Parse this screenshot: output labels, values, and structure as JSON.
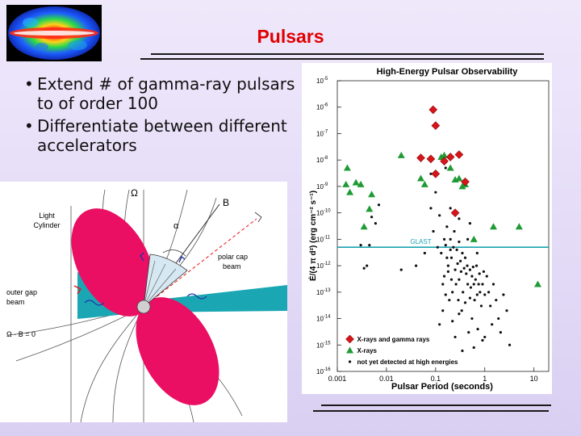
{
  "slide": {
    "title": "Pulsars",
    "bullets": [
      "Extend # of gamma-ray pulsars to of order 100",
      "Differentiate between different accelerators"
    ],
    "bullet_symbol": "•",
    "title_color": "#e00000"
  },
  "diagram": {
    "labels": {
      "omega": "Ω",
      "b_field": "B",
      "alpha": "α",
      "light_cylinder": [
        "Light",
        "Cylinder"
      ],
      "polar_cap_beam": [
        "polar cap",
        "beam"
      ],
      "outer_gap_beam": [
        "outer gap",
        "beam"
      ],
      "omega_dot_b": "Ω · B = 0"
    },
    "colors": {
      "lobe": "#ea0f63",
      "gap": "#1aa7b3"
    }
  },
  "chart_data": {
    "type": "scatter",
    "title": "High-Energy Pulsar Observability",
    "xlabel": "Pulsar Period   (seconds)",
    "ylabel": "Ė/(4 π d²)  (erg cm⁻² s⁻¹)",
    "x_scale": "log",
    "y_scale": "log",
    "xlim": [
      0.001,
      20
    ],
    "ylim": [
      1e-16,
      1e-05
    ],
    "x_ticks": [
      0.001,
      0.01,
      0.1,
      1,
      10
    ],
    "x_tick_labels": [
      "0.001",
      "0.01",
      "0.1",
      "1",
      "10"
    ],
    "y_ticks": [
      1e-05,
      1e-06,
      1e-07,
      1e-08,
      1e-09,
      1e-10,
      1e-11,
      1e-12,
      1e-13,
      1e-14,
      1e-15,
      1e-16
    ],
    "y_tick_exponents": [
      "-5",
      "-6",
      "-7",
      "-8",
      "-9",
      "-10",
      "-11",
      "-12",
      "-13",
      "-14",
      "-15",
      "-16"
    ],
    "y_tick_base": "10",
    "reference_line": {
      "label": "GLAST",
      "y": 5e-12,
      "color": "#19a3b0"
    },
    "legend_position": "bottom-center",
    "series": [
      {
        "name": "X-rays and gamma rays",
        "marker": "diamond",
        "color": "#d7141a",
        "points": [
          [
            0.089,
            8e-07
          ],
          [
            0.1,
            2e-07
          ],
          [
            0.05,
            1.2e-08
          ],
          [
            0.08,
            1.1e-08
          ],
          [
            0.15,
            9e-09
          ],
          [
            0.2,
            1.3e-08
          ],
          [
            0.3,
            1.6e-08
          ],
          [
            0.1,
            3e-09
          ],
          [
            0.4,
            1.5e-09
          ],
          [
            0.25,
            1e-10
          ]
        ]
      },
      {
        "name": "X-rays",
        "marker": "triangle",
        "color": "#1f9a35",
        "points": [
          [
            0.0016,
            5e-09
          ],
          [
            0.0015,
            1.2e-09
          ],
          [
            0.0018,
            6e-10
          ],
          [
            0.003,
            1.2e-09
          ],
          [
            0.0024,
            1.4e-09
          ],
          [
            0.005,
            5e-10
          ],
          [
            0.0045,
            1.4e-10
          ],
          [
            0.0035,
            3e-11
          ],
          [
            0.02,
            1.5e-08
          ],
          [
            0.05,
            2e-09
          ],
          [
            0.06,
            1.2e-09
          ],
          [
            0.15,
            1.5e-08
          ],
          [
            0.13,
            1.3e-08
          ],
          [
            0.2,
            5e-09
          ],
          [
            0.25,
            1.8e-09
          ],
          [
            0.3,
            2e-09
          ],
          [
            0.35,
            1e-09
          ],
          [
            0.4,
            1.2e-09
          ],
          [
            0.6,
            1e-11
          ],
          [
            1.5,
            3e-11
          ],
          [
            5,
            3e-11
          ],
          [
            12,
            2e-13
          ]
        ]
      },
      {
        "name": "not yet detected at high energies",
        "marker": "dot",
        "color": "#111111",
        "points": [
          [
            0.003,
            6e-12
          ],
          [
            0.0035,
            8e-13
          ],
          [
            0.004,
            1e-12
          ],
          [
            0.0045,
            6e-12
          ],
          [
            0.005,
            7e-11
          ],
          [
            0.006,
            4e-11
          ],
          [
            0.007,
            2e-10
          ],
          [
            0.02,
            7e-13
          ],
          [
            0.04,
            1e-12
          ],
          [
            0.06,
            3e-12
          ],
          [
            0.08,
            1.5e-10
          ],
          [
            0.09,
            2e-11
          ],
          [
            0.11,
            5e-12
          ],
          [
            0.12,
            8e-11
          ],
          [
            0.13,
            3e-12
          ],
          [
            0.14,
            2e-13
          ],
          [
            0.14,
            2e-14
          ],
          [
            0.15,
            1e-11
          ],
          [
            0.15,
            4e-13
          ],
          [
            0.16,
            6e-12
          ],
          [
            0.16,
            8e-14
          ],
          [
            0.17,
            3e-11
          ],
          [
            0.17,
            2e-12
          ],
          [
            0.18,
            1e-12
          ],
          [
            0.18,
            6e-13
          ],
          [
            0.19,
            5e-14
          ],
          [
            0.2,
            1e-11
          ],
          [
            0.2,
            4e-12
          ],
          [
            0.21,
            2e-12
          ],
          [
            0.21,
            3e-13
          ],
          [
            0.22,
            1e-13
          ],
          [
            0.22,
            8e-15
          ],
          [
            0.23,
            5e-12
          ],
          [
            0.24,
            2e-11
          ],
          [
            0.25,
            7e-13
          ],
          [
            0.26,
            2e-13
          ],
          [
            0.27,
            4e-12
          ],
          [
            0.28,
            1.2e-12
          ],
          [
            0.29,
            5e-14
          ],
          [
            0.3,
            8e-12
          ],
          [
            0.3,
            3e-13
          ],
          [
            0.32,
            1.5e-12
          ],
          [
            0.33,
            6e-13
          ],
          [
            0.34,
            2e-14
          ],
          [
            0.35,
            3e-12
          ],
          [
            0.36,
            1e-13
          ],
          [
            0.38,
            8e-13
          ],
          [
            0.4,
            2e-12
          ],
          [
            0.4,
            4e-14
          ],
          [
            0.42,
            5e-13
          ],
          [
            0.44,
            1e-12
          ],
          [
            0.45,
            2e-13
          ],
          [
            0.47,
            3e-15
          ],
          [
            0.5,
            7e-13
          ],
          [
            0.5,
            6e-14
          ],
          [
            0.52,
            1.5e-13
          ],
          [
            0.55,
            4e-13
          ],
          [
            0.55,
            1e-14
          ],
          [
            0.58,
            9e-13
          ],
          [
            0.6,
            2e-13
          ],
          [
            0.62,
            5e-14
          ],
          [
            0.65,
            3e-13
          ],
          [
            0.68,
            1e-12
          ],
          [
            0.7,
            8e-14
          ],
          [
            0.72,
            4e-15
          ],
          [
            0.75,
            2e-13
          ],
          [
            0.78,
            5e-13
          ],
          [
            0.8,
            1e-13
          ],
          [
            0.85,
            3e-14
          ],
          [
            0.9,
            2e-13
          ],
          [
            0.95,
            6e-13
          ],
          [
            1.0,
            8e-14
          ],
          [
            1.0,
            2e-15
          ],
          [
            1.1,
            4e-13
          ],
          [
            1.2,
            1e-13
          ],
          [
            1.3,
            3e-14
          ],
          [
            1.4,
            6e-15
          ],
          [
            1.5,
            2e-13
          ],
          [
            1.7,
            5e-14
          ],
          [
            1.9,
            1e-14
          ],
          [
            2.1,
            3e-15
          ],
          [
            2.4,
            8e-14
          ],
          [
            2.8,
            2e-14
          ],
          [
            3.2,
            1e-15
          ],
          [
            0.25,
            2e-15
          ],
          [
            0.35,
            6e-16
          ],
          [
            0.6,
            8e-16
          ],
          [
            0.9,
            1.5e-15
          ],
          [
            0.12,
            6e-15
          ],
          [
            0.3,
            1.5e-14
          ],
          [
            0.45,
            1e-11
          ],
          [
            0.7,
            3e-12
          ],
          [
            0.16,
            5e-09
          ],
          [
            0.2,
            1.5e-10
          ],
          [
            0.3,
            6e-11
          ],
          [
            0.5,
            4e-11
          ],
          [
            0.08,
            3e-09
          ],
          [
            0.1,
            6e-10
          ]
        ]
      }
    ]
  }
}
